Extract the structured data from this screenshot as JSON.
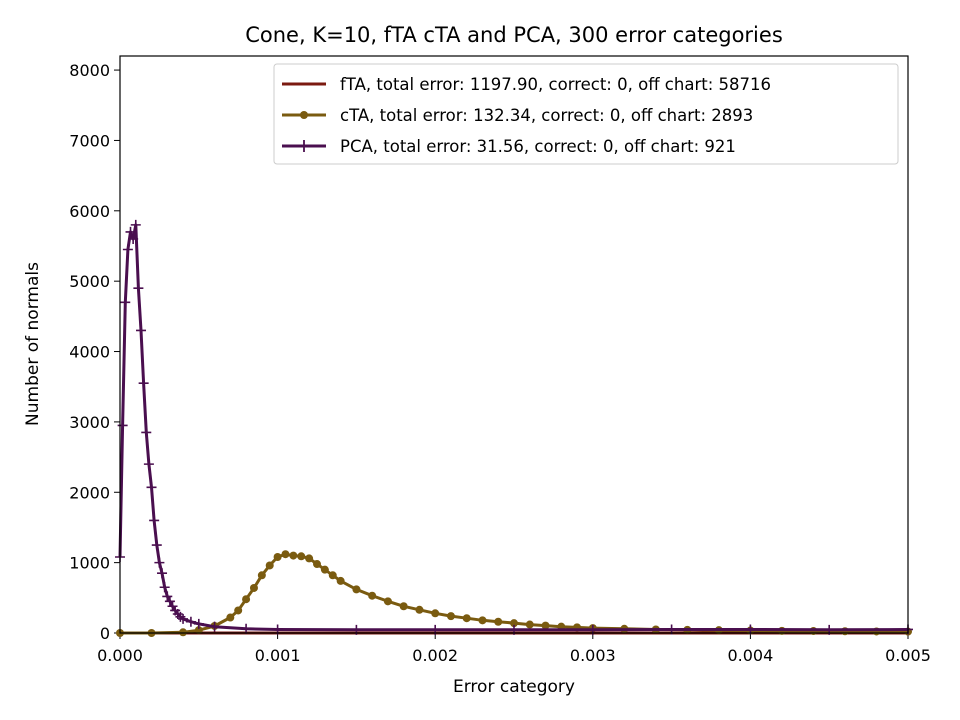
{
  "chart_data": {
    "type": "line",
    "title": "Cone, K=10, fTA cTA and PCA, 300 error categories",
    "xlabel": "Error category",
    "ylabel": "Number of normals",
    "xlim": [
      0,
      0.005
    ],
    "ylim": [
      0,
      8200
    ],
    "xticks": [
      0,
      0.001,
      0.002,
      0.003,
      0.004,
      0.005
    ],
    "xtick_labels": [
      "0.000",
      "0.001",
      "0.002",
      "0.003",
      "0.004",
      "0.005"
    ],
    "yticks": [
      0,
      1000,
      2000,
      3000,
      4000,
      5000,
      6000,
      7000,
      8000
    ],
    "ytick_labels": [
      "0",
      "1000",
      "2000",
      "3000",
      "4000",
      "5000",
      "6000",
      "7000",
      "8000"
    ],
    "grid": false,
    "legend_position": "top-right",
    "series": [
      {
        "name": "fTA, total error: 1197.90, correct: 0, off chart: 58716",
        "color": "#7b1a10",
        "marker": "none",
        "x": [
          0,
          0.0005,
          0.001,
          0.0015,
          0.002,
          0.0025,
          0.003,
          0.0035,
          0.004,
          0.0045,
          0.005
        ],
        "y": [
          0,
          0,
          0,
          0,
          0,
          0,
          0,
          0,
          0,
          0,
          0
        ]
      },
      {
        "name": "cTA, total error: 132.34, correct: 0, off chart: 2893",
        "color": "#7a5b10",
        "marker": "circle",
        "x": [
          0,
          0.0002,
          0.0004,
          0.0005,
          0.0006,
          0.0007,
          0.00075,
          0.0008,
          0.00085,
          0.0009,
          0.00095,
          0.001,
          0.00105,
          0.0011,
          0.00115,
          0.0012,
          0.00125,
          0.0013,
          0.00135,
          0.0014,
          0.0015,
          0.0016,
          0.0017,
          0.0018,
          0.0019,
          0.002,
          0.0021,
          0.0022,
          0.0023,
          0.0024,
          0.0025,
          0.0026,
          0.0027,
          0.0028,
          0.0029,
          0.003,
          0.0032,
          0.0034,
          0.0036,
          0.0038,
          0.004,
          0.0042,
          0.0044,
          0.0046,
          0.0048,
          0.005
        ],
        "y": [
          0,
          0,
          10,
          40,
          100,
          220,
          320,
          480,
          640,
          820,
          960,
          1080,
          1120,
          1100,
          1090,
          1060,
          980,
          900,
          820,
          740,
          620,
          530,
          450,
          380,
          330,
          280,
          240,
          210,
          180,
          160,
          140,
          120,
          105,
          90,
          80,
          70,
          60,
          50,
          45,
          40,
          35,
          30,
          28,
          25,
          22,
          20
        ]
      },
      {
        "name": "PCA, total error: 31.56, correct: 0, off chart: 921",
        "color": "#4a0f4f",
        "marker": "plus",
        "x": [
          0,
          1.667e-05,
          3.333e-05,
          5e-05,
          6.667e-05,
          8.333e-05,
          0.0001,
          0.00011667,
          0.00013333,
          0.00015,
          0.00016667,
          0.00018333,
          0.0002,
          0.00021667,
          0.00023333,
          0.00025,
          0.00026667,
          0.00028333,
          0.0003,
          0.00031667,
          0.00033333,
          0.00035,
          0.00036667,
          0.00038333,
          0.0004,
          0.00045,
          0.0005,
          0.0006,
          0.0008,
          0.001,
          0.0015,
          0.002,
          0.0025,
          0.003,
          0.0035,
          0.004,
          0.0045,
          0.005
        ],
        "y": [
          1080,
          2950,
          4700,
          5450,
          5700,
          5600,
          5800,
          4900,
          4300,
          3550,
          2850,
          2400,
          2070,
          1600,
          1250,
          1000,
          850,
          650,
          520,
          450,
          380,
          320,
          270,
          230,
          200,
          160,
          130,
          90,
          60,
          50,
          45,
          45,
          45,
          45,
          50,
          50,
          45,
          50
        ]
      }
    ]
  }
}
